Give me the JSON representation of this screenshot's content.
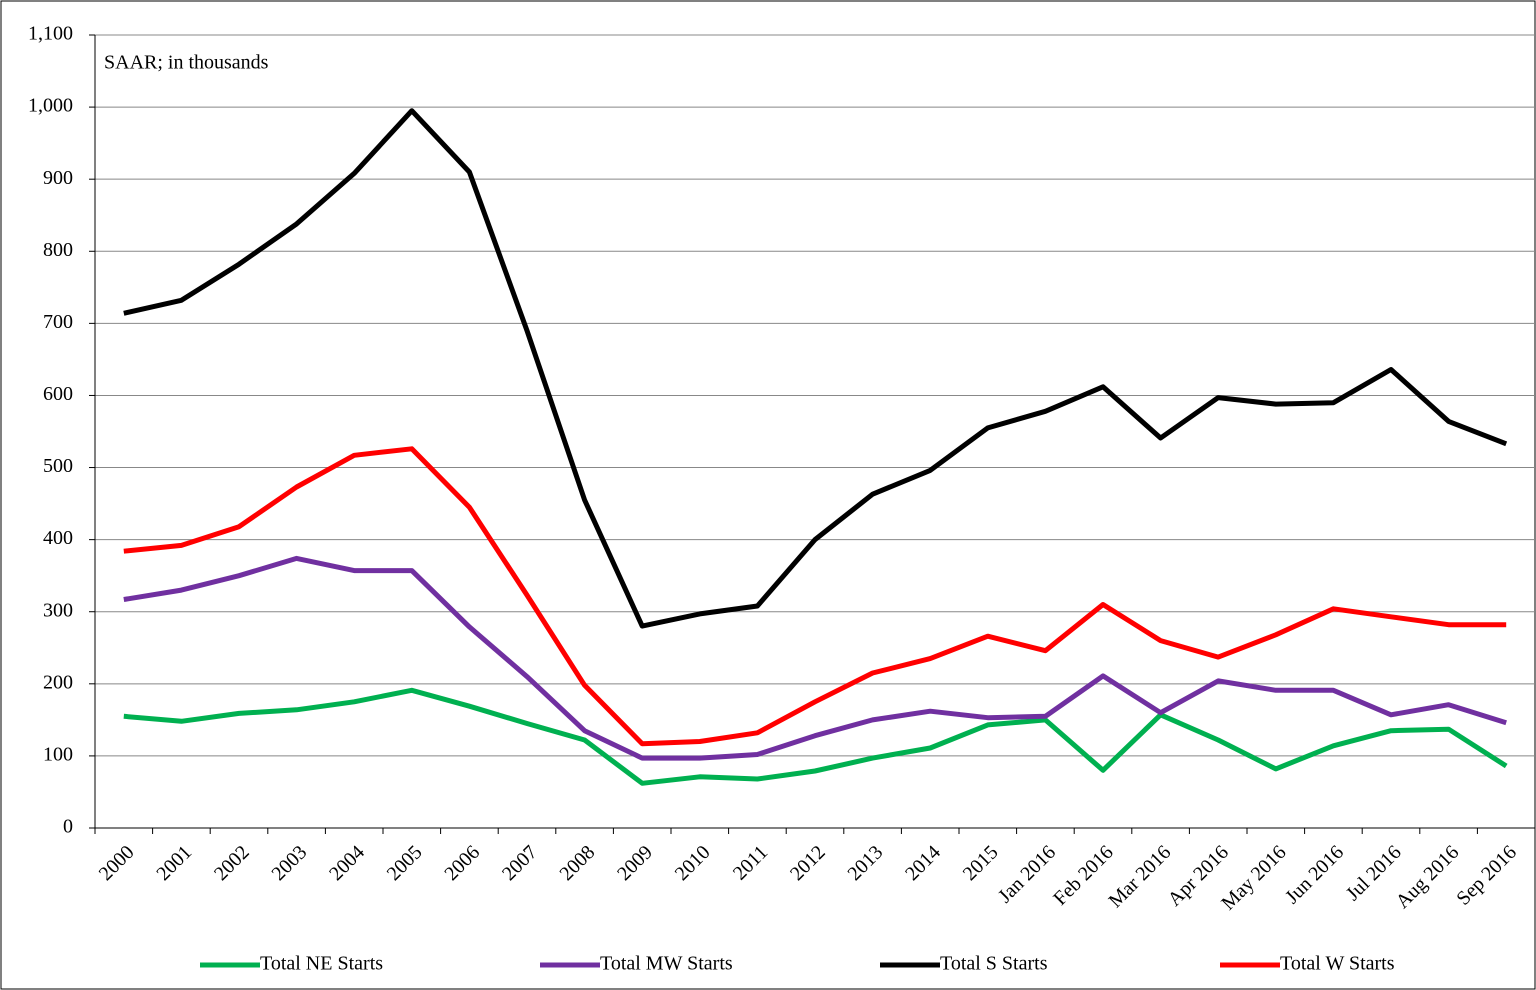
{
  "chart_data": {
    "type": "line",
    "annotation": "SAAR; in thousands",
    "categories": [
      "2000",
      "2001",
      "2002",
      "2003",
      "2004",
      "2005",
      "2006",
      "2007",
      "2008",
      "2009",
      "2010",
      "2011",
      "2012",
      "2013",
      "2014",
      "2015",
      "Jan 2016",
      "Feb 2016",
      "Mar 2016",
      "Apr 2016",
      "May 2016",
      "Jun 2016",
      "Jul 2016",
      "Aug 2016",
      "Sep 2016"
    ],
    "series": [
      {
        "name": "Total NE Starts",
        "color": "#00b050",
        "values": [
          155,
          148,
          159,
          164,
          175,
          191,
          169,
          145,
          122,
          62,
          71,
          68,
          79,
          97,
          111,
          143,
          150,
          80,
          157,
          122,
          82,
          114,
          135,
          137,
          86
        ]
      },
      {
        "name": "Total MW Starts",
        "color": "#7030a0",
        "values": [
          317,
          330,
          350,
          374,
          357,
          357,
          279,
          210,
          135,
          97,
          97,
          102,
          128,
          150,
          162,
          153,
          155,
          211,
          160,
          204,
          191,
          191,
          157,
          171,
          146
        ]
      },
      {
        "name": "Total S Starts",
        "color": "#000000",
        "values": [
          714,
          732,
          782,
          838,
          908,
          995,
          910,
          690,
          455,
          280,
          297,
          308,
          400,
          463,
          496,
          555,
          578,
          612,
          541,
          597,
          588,
          590,
          636,
          564,
          533
        ]
      },
      {
        "name": "Total W Starts",
        "color": "#ff0000",
        "values": [
          384,
          392,
          418,
          473,
          517,
          526,
          445,
          323,
          198,
          117,
          120,
          132,
          175,
          215,
          235,
          266,
          246,
          310,
          260,
          237,
          268,
          304,
          293,
          282,
          282
        ]
      }
    ],
    "ylim": [
      0,
      1100
    ],
    "yticks": [
      0,
      100,
      200,
      300,
      400,
      500,
      600,
      700,
      800,
      900,
      {
        "value": 1000,
        "label": "1,000"
      },
      {
        "value": 1100,
        "label": "1,100"
      }
    ],
    "grid": true
  }
}
